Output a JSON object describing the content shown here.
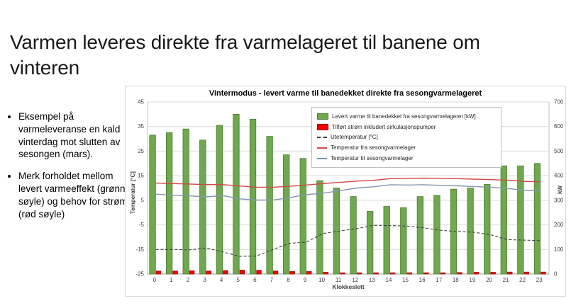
{
  "slide": {
    "title": "Varmen leveres direkte fra varmelageret til banene om vinteren",
    "bullets": [
      "Eksempel på varmeleveranse en kald vinterdag mot slutten av sesongen (mars).",
      "Merk forholdet mellom levert varmeeffekt (grønn søyle) og behov for strøm (rød søyle)"
    ]
  },
  "chart_data": {
    "type": "bar",
    "title": "Vintermodus - levert varme til banedekket direkte fra sesongvarmelageret",
    "xlabel": "Klokkeslett",
    "ylabel_left": "Temperatur [°C]",
    "ylabel_right": "kW",
    "ylim_left": [
      -25,
      45
    ],
    "ylim_right": [
      0,
      700
    ],
    "grid": true,
    "legend_position": "inside-top-center",
    "hours": [
      0,
      1,
      2,
      3,
      4,
      5,
      6,
      7,
      8,
      9,
      10,
      11,
      12,
      13,
      14,
      15,
      16,
      17,
      18,
      19,
      20,
      21,
      22,
      23
    ],
    "left_ticks": [
      45,
      35,
      25,
      15,
      5,
      -5,
      -15,
      -25
    ],
    "right_ticks": [
      700,
      600,
      500,
      400,
      300,
      200,
      100,
      0
    ],
    "series": [
      {
        "name": "Levert varme til banedekket fra sesongvarmelageret [kW]",
        "type": "bar",
        "axis": "right",
        "color": "#6fa84f",
        "border": "#4e7a30",
        "values": [
          565,
          575,
          590,
          545,
          605,
          650,
          630,
          560,
          485,
          470,
          380,
          350,
          315,
          255,
          275,
          270,
          315,
          320,
          345,
          350,
          365,
          440,
          440,
          450
        ]
      },
      {
        "name": "Tilført strøm inkludert sirkulasjonspumper",
        "type": "bar",
        "axis": "right",
        "color": "#fe0000",
        "border": "#9c0006",
        "values": [
          12,
          12,
          13,
          12,
          14,
          16,
          15,
          12,
          10,
          10,
          7,
          5,
          5,
          5,
          5,
          5,
          5,
          5,
          6,
          7,
          7,
          8,
          8,
          8
        ]
      },
      {
        "name": "Utetemperatur [°C]",
        "type": "line-dashed",
        "axis": "left",
        "color": "#404040",
        "values": [
          -15,
          -15,
          -15.2,
          -14.4,
          -16,
          -17.8,
          -17.7,
          -15,
          -12.5,
          -12,
          -8.5,
          -7.5,
          -6.5,
          -5.2,
          -5.3,
          -5.5,
          -6.2,
          -7.2,
          -7.7,
          -8,
          -9,
          -11,
          -11.2,
          -11.4
        ]
      },
      {
        "name": "Temperatur fra sesongvarmelager",
        "type": "line",
        "axis": "left",
        "color": "#cf4a46",
        "values": [
          12,
          11.8,
          11.6,
          11.4,
          11.4,
          10.8,
          10.3,
          10.3,
          10.7,
          11.2,
          11.8,
          12.3,
          12.8,
          13.1,
          13.8,
          13.9,
          14,
          13.9,
          13.8,
          13.6,
          13.4,
          13.2,
          12.7,
          12.5
        ]
      },
      {
        "name": "Temperatur til sesongvarmelager",
        "type": "line",
        "axis": "left",
        "color": "#8497b0",
        "values": [
          7.5,
          7.1,
          6.8,
          6.4,
          6.9,
          5.6,
          5.1,
          5.1,
          6.1,
          7.3,
          7.9,
          8.9,
          10,
          10.5,
          11.3,
          11.2,
          11.3,
          11.1,
          10.9,
          10.6,
          10.3,
          9.8,
          9.1,
          9
        ]
      }
    ]
  }
}
